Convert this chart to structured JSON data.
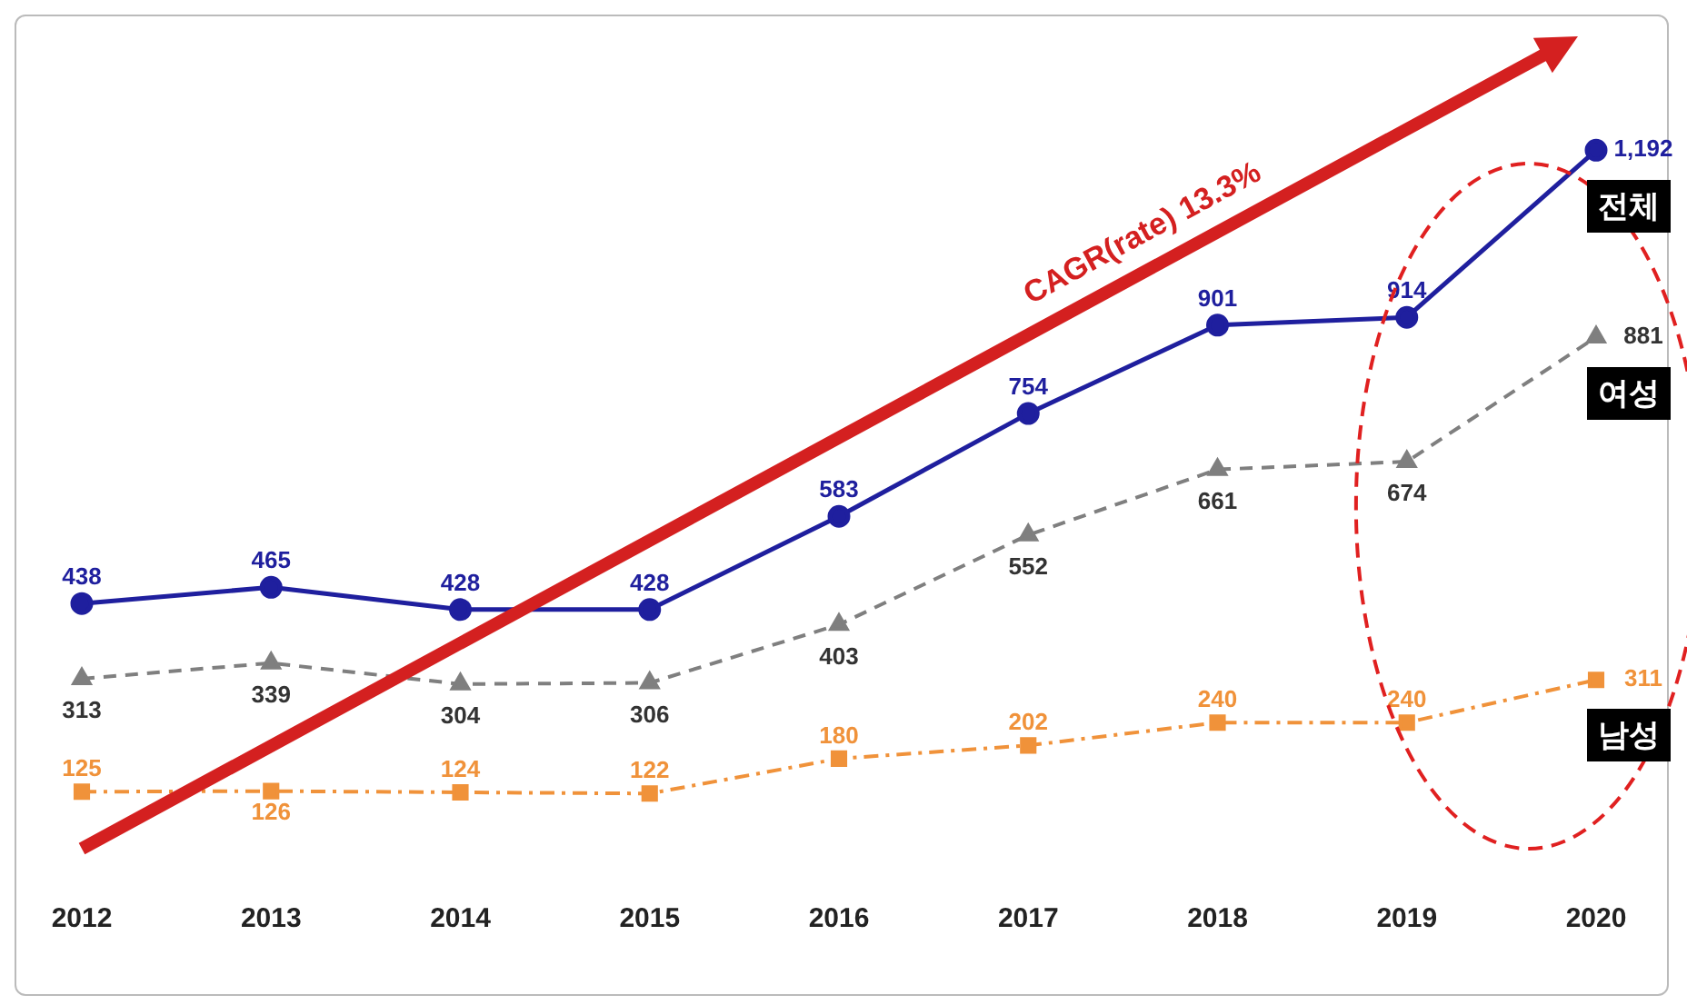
{
  "chart_data": {
    "type": "line",
    "categories": [
      "2012",
      "2013",
      "2014",
      "2015",
      "2016",
      "2017",
      "2018",
      "2019",
      "2020"
    ],
    "series": [
      {
        "name": "전체",
        "color": "#1f1f9e",
        "marker": "circle",
        "line_style": "solid",
        "values": [
          438,
          465,
          428,
          428,
          583,
          754,
          901,
          914,
          1192
        ],
        "value_labels": [
          "438",
          "465",
          "428",
          "428",
          "583",
          "754",
          "901",
          "914",
          "1,192"
        ]
      },
      {
        "name": "여성",
        "color": "#7f7f7f",
        "marker": "triangle",
        "line_style": "dashed",
        "values": [
          313,
          339,
          304,
          306,
          403,
          552,
          661,
          674,
          881
        ],
        "value_labels": [
          "313",
          "339",
          "304",
          "306",
          "403",
          "552",
          "661",
          "674",
          "881"
        ]
      },
      {
        "name": "남성",
        "color": "#f0923a",
        "marker": "square",
        "line_style": "dashdot",
        "values": [
          125,
          126,
          124,
          122,
          180,
          202,
          240,
          240,
          311
        ],
        "value_labels": [
          "125",
          "126",
          "124",
          "122",
          "180",
          "202",
          "240",
          "240",
          "311"
        ]
      }
    ],
    "tick_labels": "x",
    "grid": false,
    "legend": false,
    "annotations": [
      "CAGR(rate) 13.3%"
    ]
  }
}
